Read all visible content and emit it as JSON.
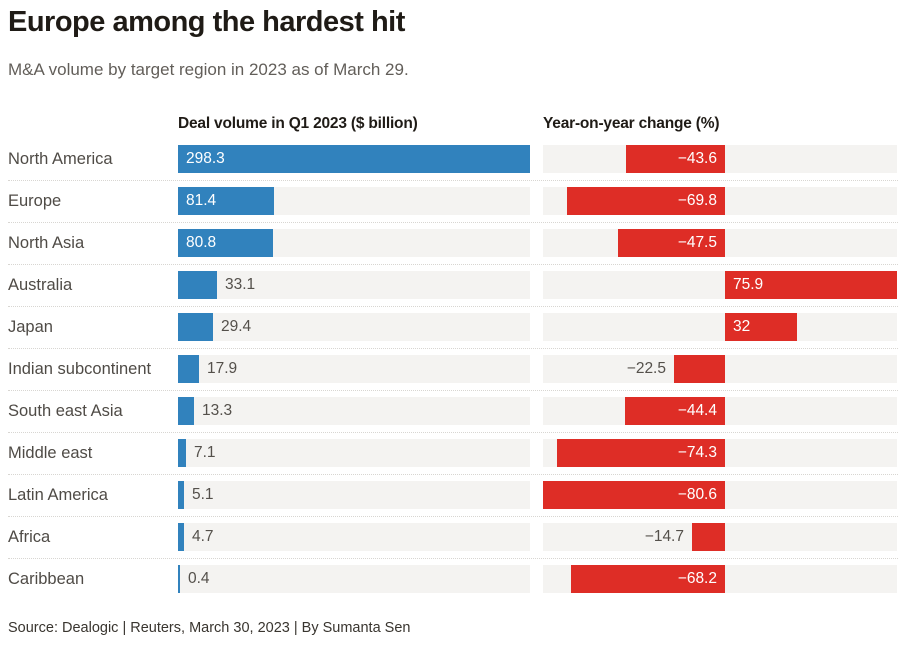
{
  "title": "Europe among the hardest hit",
  "subtitle": "M&A volume by target region in 2023 as of March 29.",
  "columns": {
    "left_header": "Deal volume in Q1 2023 ($ billion)",
    "right_header": "Year-on-year change (%)"
  },
  "source": "Source: Dealogic | Reuters, March 30, 2023 | By Sumanta Sen",
  "colors": {
    "deal_volume_bar": "#3182bd",
    "yoy_change_bar": "#de2d26",
    "bar_track": "#f4f3f1",
    "heading_text": "#1f1b16",
    "label_text": "#4f4b46"
  },
  "chart_data": {
    "type": "bar",
    "orientation": "horizontal",
    "title": "Europe among the hardest hit",
    "subtitle": "M&A volume by target region in 2023 as of March 29.",
    "categories": [
      "North America",
      "Europe",
      "North Asia",
      "Australia",
      "Japan",
      "Indian subcontinent",
      "South east Asia",
      "Middle east",
      "Latin America",
      "Africa",
      "Caribbean"
    ],
    "series": [
      {
        "name": "Deal volume in Q1 2023 ($ billion)",
        "values": [
          298.3,
          81.4,
          80.8,
          33.1,
          29.4,
          17.9,
          13.3,
          7.1,
          5.1,
          4.7,
          0.4
        ],
        "labels": [
          "298.3",
          "81.4",
          "80.8",
          "33.1",
          "29.4",
          "17.9",
          "13.3",
          "7.1",
          "5.1",
          "4.7",
          "0.4"
        ],
        "range": [
          0,
          298.3
        ],
        "color": "#3182bd"
      },
      {
        "name": "Year-on-year change (%)",
        "values": [
          -43.6,
          -69.8,
          -47.5,
          75.9,
          32,
          -22.5,
          -44.4,
          -74.3,
          -80.6,
          -14.7,
          -68.2
        ],
        "labels": [
          "−43.6",
          "−69.8",
          "−47.5",
          "75.9",
          "32",
          "−22.5",
          "−44.4",
          "−74.3",
          "−80.6",
          "−14.7",
          "−68.2"
        ],
        "range": [
          -80.6,
          75.9
        ],
        "color": "#de2d26"
      }
    ],
    "grid": false,
    "legend": false
  }
}
